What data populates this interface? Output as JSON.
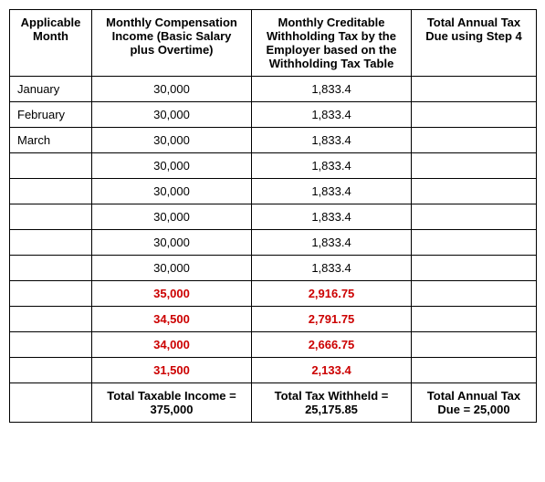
{
  "table": {
    "columns": [
      "Applicable Month",
      "Monthly Compensation Income\n(Basic Salary plus Overtime)",
      "Monthly Creditable Withholding Tax by the Employer based on the Withholding Tax Table",
      "Total Annual Tax Due using Step 4"
    ],
    "rows": [
      {
        "month": "January",
        "income": "30,000",
        "tax": "1,833.4",
        "highlight": false
      },
      {
        "month": "February",
        "income": "30,000",
        "tax": "1,833.4",
        "highlight": false
      },
      {
        "month": "March",
        "income": "30,000",
        "tax": "1,833.4",
        "highlight": false
      },
      {
        "month": "",
        "income": "30,000",
        "tax": "1,833.4",
        "highlight": false
      },
      {
        "month": "",
        "income": "30,000",
        "tax": "1,833.4",
        "highlight": false
      },
      {
        "month": "",
        "income": "30,000",
        "tax": "1,833.4",
        "highlight": false
      },
      {
        "month": "",
        "income": "30,000",
        "tax": "1,833.4",
        "highlight": false
      },
      {
        "month": "",
        "income": "30,000",
        "tax": "1,833.4",
        "highlight": false
      },
      {
        "month": "",
        "income": "35,000",
        "tax": "2,916.75",
        "highlight": true
      },
      {
        "month": "",
        "income": "34,500",
        "tax": "2,791.75",
        "highlight": true
      },
      {
        "month": "",
        "income": "34,000",
        "tax": "2,666.75",
        "highlight": true
      },
      {
        "month": "",
        "income": "31,500",
        "tax": "2,133.4",
        "highlight": true
      }
    ],
    "totals": {
      "income_label": "Total Taxable Income = 375,000",
      "tax_label": "Total Tax Withheld = 25,175.85",
      "due_label": "Total Annual Tax Due = 25,000"
    },
    "colors": {
      "highlight": "#cc0000",
      "text": "#000000",
      "border": "#000000",
      "background": "#ffffff"
    },
    "font_size": 13
  }
}
